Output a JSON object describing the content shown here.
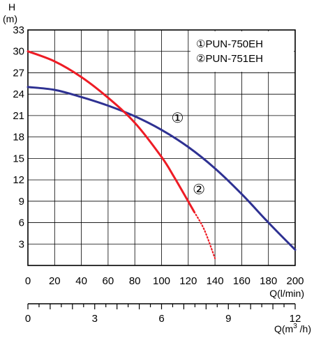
{
  "chart_data": {
    "type": "line",
    "y_axis": {
      "label_line1": "H",
      "label_line2": "(m)",
      "ticks": [
        3,
        6,
        9,
        12,
        15,
        18,
        21,
        24,
        27,
        30,
        33
      ],
      "ylim": [
        0,
        33
      ]
    },
    "x_axis_primary": {
      "label": "Q(l/min)",
      "ticks": [
        0,
        20,
        40,
        60,
        80,
        100,
        120,
        140,
        160,
        180,
        200
      ],
      "xlim": [
        0,
        200
      ]
    },
    "x_axis_secondary": {
      "label_prefix": "Q(m",
      "label_sup": "3",
      "label_suffix": " /h)",
      "ticks": [
        0,
        3,
        6,
        9,
        12
      ],
      "xlim": [
        0,
        12
      ]
    },
    "grid": true,
    "legend": {
      "placement": "top-right",
      "entries": [
        "①PUN-750EH",
        "②PUN-751EH"
      ]
    },
    "series": [
      {
        "name": "①PUN-750EH",
        "marker": "①",
        "color": "#2e3192",
        "points": [
          [
            0,
            25
          ],
          [
            20,
            24.6
          ],
          [
            40,
            23.6
          ],
          [
            60,
            22.4
          ],
          [
            80,
            20.9
          ],
          [
            100,
            19
          ],
          [
            120,
            16.6
          ],
          [
            140,
            13.6
          ],
          [
            160,
            10
          ],
          [
            180,
            6
          ],
          [
            200,
            2.2
          ]
        ]
      },
      {
        "name": "②PUN-751EH",
        "marker": "②",
        "color": "#ee1c25",
        "points": [
          [
            0,
            30
          ],
          [
            20,
            28.6
          ],
          [
            40,
            26.4
          ],
          [
            60,
            23.5
          ],
          [
            80,
            20
          ],
          [
            100,
            15.2
          ],
          [
            110,
            12.2
          ],
          [
            124.5,
            7.5
          ]
        ],
        "dotted_points": [
          [
            124.5,
            7.5
          ],
          [
            132,
            5
          ],
          [
            140,
            1
          ]
        ]
      }
    ]
  }
}
